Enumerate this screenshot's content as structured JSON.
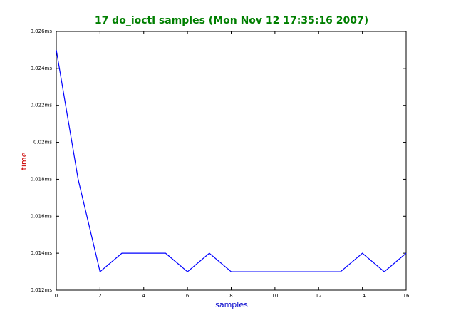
{
  "chart_data": {
    "type": "line",
    "title": "17 do_ioctl samples (Mon Nov 12 17:35:16 2007)",
    "xlabel": "samples",
    "ylabel": "time",
    "x": [
      0,
      1,
      2,
      3,
      4,
      5,
      6,
      7,
      8,
      9,
      10,
      11,
      12,
      13,
      14,
      15,
      16
    ],
    "values": [
      0.025,
      0.018,
      0.013,
      0.014,
      0.014,
      0.014,
      0.013,
      0.014,
      0.013,
      0.013,
      0.013,
      0.013,
      0.013,
      0.013,
      0.014,
      0.013,
      0.014
    ],
    "color": "#0000ff",
    "title_color": "#007f00",
    "xlabel_color": "#0000cc",
    "ylabel_color": "#cc0000",
    "xlim": [
      0,
      16
    ],
    "xticks": [
      0,
      2,
      4,
      6,
      8,
      10,
      12,
      14,
      16
    ],
    "ylim": [
      0.012,
      0.026
    ],
    "yticks": [
      {
        "value": 0.012,
        "label": "0.012ms"
      },
      {
        "value": 0.014,
        "label": "0.014ms"
      },
      {
        "value": 0.016,
        "label": "0.016ms"
      },
      {
        "value": 0.018,
        "label": "0.018ms"
      },
      {
        "value": 0.02,
        "label": "0.02ms"
      },
      {
        "value": 0.022,
        "label": "0.022ms"
      },
      {
        "value": 0.024,
        "label": "0.024ms"
      },
      {
        "value": 0.026,
        "label": "0.026ms"
      }
    ]
  }
}
